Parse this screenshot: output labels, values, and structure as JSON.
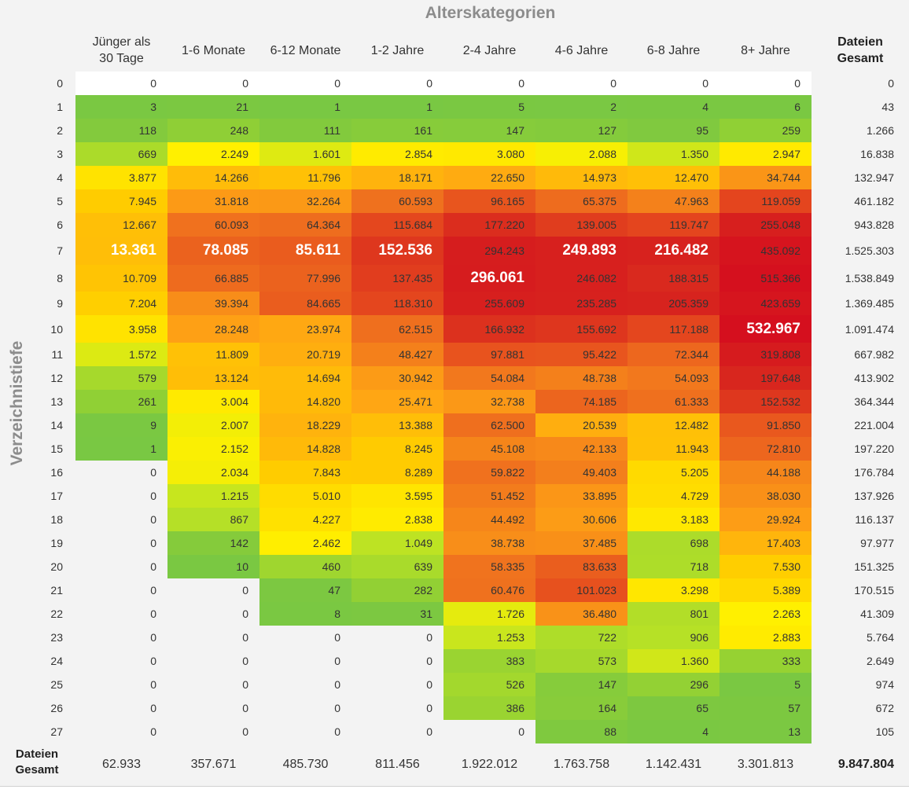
{
  "chart_data": {
    "type": "heatmap",
    "title": "Alterskategorien",
    "ylabel": "Verzeichnistiefe",
    "columns": [
      "Jünger als 30 Tage",
      "1-6 Monate",
      "6-12 Monate",
      "1-2 Jahre",
      "2-4 Jahre",
      "4-6 Jahre",
      "6-8 Jahre",
      "8+ Jahre"
    ],
    "total_label": "Dateien Gesamt",
    "rows": [
      {
        "label": "0",
        "values": [
          "0",
          "0",
          "0",
          "0",
          "0",
          "0",
          "0",
          "0"
        ],
        "total": "0"
      },
      {
        "label": "1",
        "values": [
          "3",
          "21",
          "1",
          "1",
          "5",
          "2",
          "4",
          "6"
        ],
        "total": "43"
      },
      {
        "label": "2",
        "values": [
          "118",
          "248",
          "111",
          "161",
          "147",
          "127",
          "95",
          "259"
        ],
        "total": "1.266"
      },
      {
        "label": "3",
        "values": [
          "669",
          "2.249",
          "1.601",
          "2.854",
          "3.080",
          "2.088",
          "1.350",
          "2.947"
        ],
        "total": "16.838"
      },
      {
        "label": "4",
        "values": [
          "3.877",
          "14.266",
          "11.796",
          "18.171",
          "22.650",
          "14.973",
          "12.470",
          "34.744"
        ],
        "total": "132.947"
      },
      {
        "label": "5",
        "values": [
          "7.945",
          "31.818",
          "32.264",
          "60.593",
          "96.165",
          "65.375",
          "47.963",
          "119.059"
        ],
        "total": "461.182"
      },
      {
        "label": "6",
        "values": [
          "12.667",
          "60.093",
          "64.364",
          "115.684",
          "177.220",
          "139.005",
          "119.747",
          "255.048"
        ],
        "total": "943.828"
      },
      {
        "label": "7",
        "values": [
          "13.361",
          "78.085",
          "85.611",
          "152.536",
          "294.243",
          "249.893",
          "216.482",
          "435.092"
        ],
        "total": "1.525.303"
      },
      {
        "label": "8",
        "values": [
          "10.709",
          "66.885",
          "77.996",
          "137.435",
          "296.061",
          "246.082",
          "188.315",
          "515.366"
        ],
        "total": "1.538.849"
      },
      {
        "label": "9",
        "values": [
          "7.204",
          "39.394",
          "84.665",
          "118.310",
          "255.609",
          "235.285",
          "205.359",
          "423.659"
        ],
        "total": "1.369.485"
      },
      {
        "label": "10",
        "values": [
          "3.958",
          "28.248",
          "23.974",
          "62.515",
          "166.932",
          "155.692",
          "117.188",
          "532.967"
        ],
        "total": "1.091.474"
      },
      {
        "label": "11",
        "values": [
          "1.572",
          "11.809",
          "20.719",
          "48.427",
          "97.881",
          "95.422",
          "72.344",
          "319.808"
        ],
        "total": "667.982"
      },
      {
        "label": "12",
        "values": [
          "579",
          "13.124",
          "14.694",
          "30.942",
          "54.084",
          "48.738",
          "54.093",
          "197.648"
        ],
        "total": "413.902"
      },
      {
        "label": "13",
        "values": [
          "261",
          "3.004",
          "14.820",
          "25.471",
          "32.738",
          "74.185",
          "61.333",
          "152.532"
        ],
        "total": "364.344"
      },
      {
        "label": "14",
        "values": [
          "9",
          "2.007",
          "18.229",
          "13.388",
          "62.500",
          "20.539",
          "12.482",
          "91.850"
        ],
        "total": "221.004"
      },
      {
        "label": "15",
        "values": [
          "1",
          "2.152",
          "14.828",
          "8.245",
          "45.108",
          "42.133",
          "11.943",
          "72.810"
        ],
        "total": "197.220"
      },
      {
        "label": "16",
        "values": [
          "0",
          "2.034",
          "7.843",
          "8.289",
          "59.822",
          "49.403",
          "5.205",
          "44.188"
        ],
        "total": "176.784"
      },
      {
        "label": "17",
        "values": [
          "0",
          "1.215",
          "5.010",
          "3.595",
          "51.452",
          "33.895",
          "4.729",
          "38.030"
        ],
        "total": "137.926"
      },
      {
        "label": "18",
        "values": [
          "0",
          "867",
          "4.227",
          "2.838",
          "44.492",
          "30.606",
          "3.183",
          "29.924"
        ],
        "total": "116.137"
      },
      {
        "label": "19",
        "values": [
          "0",
          "142",
          "2.462",
          "1.049",
          "38.738",
          "37.485",
          "698",
          "17.403"
        ],
        "total": "97.977"
      },
      {
        "label": "20",
        "values": [
          "0",
          "10",
          "460",
          "639",
          "58.335",
          "83.633",
          "718",
          "7.530"
        ],
        "total": "151.325"
      },
      {
        "label": "21",
        "values": [
          "0",
          "0",
          "47",
          "282",
          "60.476",
          "101.023",
          "3.298",
          "5.389"
        ],
        "total": "170.515"
      },
      {
        "label": "22",
        "values": [
          "0",
          "0",
          "8",
          "31",
          "1.726",
          "36.480",
          "801",
          "2.263"
        ],
        "total": "41.309"
      },
      {
        "label": "23",
        "values": [
          "0",
          "0",
          "0",
          "0",
          "1.253",
          "722",
          "906",
          "2.883"
        ],
        "total": "5.764"
      },
      {
        "label": "24",
        "values": [
          "0",
          "0",
          "0",
          "0",
          "383",
          "573",
          "1.360",
          "333"
        ],
        "total": "2.649"
      },
      {
        "label": "25",
        "values": [
          "0",
          "0",
          "0",
          "0",
          "526",
          "147",
          "296",
          "5"
        ],
        "total": "974"
      },
      {
        "label": "26",
        "values": [
          "0",
          "0",
          "0",
          "0",
          "386",
          "164",
          "65",
          "57"
        ],
        "total": "672"
      },
      {
        "label": "27",
        "values": [
          "0",
          "0",
          "0",
          "0",
          "0",
          "88",
          "4",
          "13"
        ],
        "total": "105"
      }
    ],
    "column_totals": [
      "62.933",
      "357.671",
      "485.730",
      "811.456",
      "1.922.012",
      "1.763.758",
      "1.142.431",
      "3.301.813"
    ],
    "grand_total": "9.847.804",
    "bold_cells": [
      {
        "row": "7",
        "column": "Jünger als 30 Tage"
      },
      {
        "row": "7",
        "column": "1-6 Monate"
      },
      {
        "row": "7",
        "column": "6-12 Monate"
      },
      {
        "row": "7",
        "column": "1-2 Jahre"
      },
      {
        "row": "7",
        "column": "4-6 Jahre"
      },
      {
        "row": "7",
        "column": "6-8 Jahre"
      },
      {
        "row": "8",
        "column": "2-4 Jahre"
      },
      {
        "row": "10",
        "column": "8+ Jahre"
      }
    ],
    "color_scale": {
      "empty": "#ffffff",
      "low": "#79c843",
      "mid": "#ffef00",
      "high": "#d50f1e"
    }
  }
}
